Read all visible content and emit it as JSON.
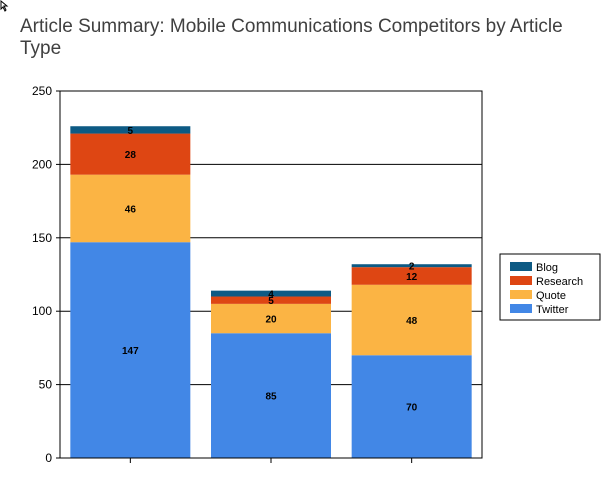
{
  "chart_data": {
    "type": "bar",
    "stacked": true,
    "title": "Article Summary: Mobile Communications Competitors by Article Type",
    "xlabel": "",
    "ylabel": "",
    "categories": [
      "",
      "",
      ""
    ],
    "ylim": [
      0,
      250
    ],
    "yticks": [
      0,
      50,
      100,
      150,
      200,
      250
    ],
    "grid": true,
    "legend_position": "right",
    "series": [
      {
        "name": "Twitter",
        "color": "#4287e6",
        "values": [
          147,
          85,
          70
        ]
      },
      {
        "name": "Quote",
        "color": "#fbb444",
        "values": [
          46,
          20,
          48
        ]
      },
      {
        "name": "Research",
        "color": "#de4613",
        "values": [
          28,
          5,
          12
        ]
      },
      {
        "name": "Blog",
        "color": "#0d5a84",
        "values": [
          5,
          4,
          2
        ]
      }
    ],
    "legend_order": [
      "Blog",
      "Research",
      "Quote",
      "Twitter"
    ]
  }
}
